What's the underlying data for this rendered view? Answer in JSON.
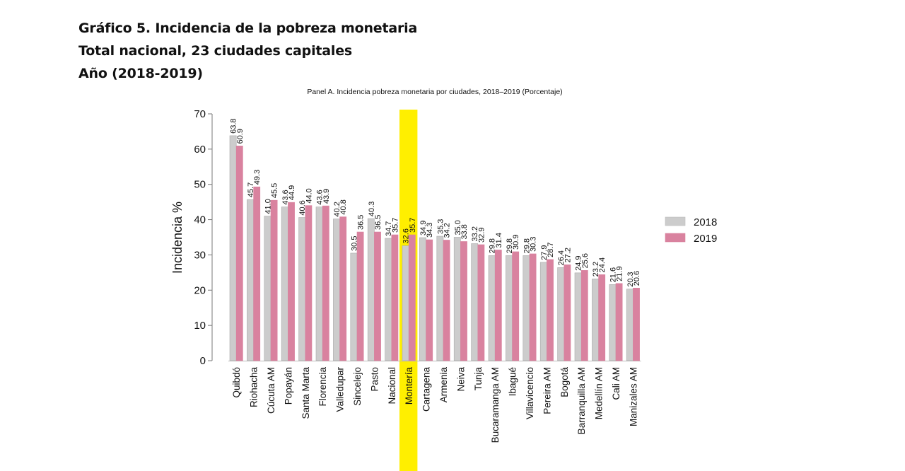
{
  "header": {
    "line1": "Gráfico 5. Incidencia de la pobreza monetaria",
    "line2": "Total nacional, 23 ciudades capitales",
    "line3": "Año (2018-2019)"
  },
  "chart_data": {
    "type": "bar",
    "title": "Panel A. Incidencia pobreza monetaria por ciudades, 2018–2019 (Porcentaje)",
    "xlabel": "",
    "ylabel": "Incidencia %",
    "ylim": [
      0,
      70
    ],
    "yticks": [
      0,
      10,
      20,
      30,
      40,
      50,
      60,
      70
    ],
    "grid": false,
    "legend_position": "right",
    "highlight_category": "Montería",
    "highlight_color": "#ffef00",
    "categories": [
      "Quibdó",
      "Riohacha",
      "Cúcuta AM",
      "Popayán",
      "Santa Marta",
      "Florencia",
      "Valledupar",
      "Sincelejo",
      "Pasto",
      "Nacional",
      "Montería",
      "Cartagena",
      "Armenia",
      "Neiva",
      "Tunja",
      "Bucaramanga AM",
      "Ibagué",
      "Villavicencio",
      "Pereira AM",
      "Bogotá",
      "Barranquilla AM",
      "Medellín AM",
      "Cali AM",
      "Manizales AM"
    ],
    "series": [
      {
        "name": "2018",
        "color": "#cccccc",
        "values": [
          63.8,
          45.7,
          41.0,
          43.6,
          40.6,
          43.6,
          40.2,
          30.5,
          40.3,
          34.7,
          32.6,
          34.9,
          35.3,
          35.0,
          33.2,
          29.8,
          29.8,
          29.8,
          27.9,
          26.4,
          24.9,
          23.2,
          21.6,
          20.3
        ]
      },
      {
        "name": "2019",
        "color": "#d9829f",
        "values": [
          60.9,
          49.3,
          45.5,
          44.9,
          44.0,
          43.9,
          40.8,
          36.5,
          36.5,
          35.7,
          35.7,
          34.3,
          34.2,
          33.8,
          32.9,
          31.4,
          30.9,
          30.3,
          28.7,
          27.2,
          25.6,
          24.4,
          21.9,
          20.6
        ]
      }
    ]
  }
}
